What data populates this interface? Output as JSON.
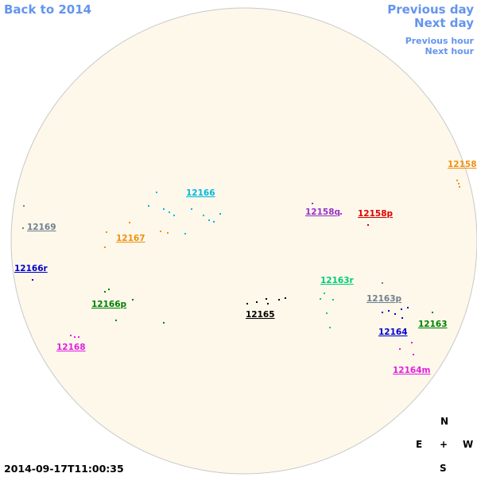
{
  "navigation": {
    "back": "Back to 2014",
    "previous_day": "Previous day",
    "next_day": "Next day",
    "previous_hour": "Previous hour",
    "next_hour": "Next hour"
  },
  "regions": [
    {
      "label": "12158",
      "color": "#f0900f"
    },
    {
      "label": "12166",
      "color": "#00b8e0"
    },
    {
      "label": "12158q",
      "color": "#9932cc"
    },
    {
      "label": "12158p",
      "color": "#e00000"
    },
    {
      "label": "12169",
      "color": "#708090"
    },
    {
      "label": "12167",
      "color": "#f0900f"
    },
    {
      "label": "12166r",
      "color": "#0000cd"
    },
    {
      "label": "12163r",
      "color": "#00cc77"
    },
    {
      "label": "12166p",
      "color": "#008000"
    },
    {
      "label": "12163p",
      "color": "#708090"
    },
    {
      "label": "12165",
      "color": "#000000"
    },
    {
      "label": "12164",
      "color": "#0000cd"
    },
    {
      "label": "12163",
      "color": "#008000"
    },
    {
      "label": "12168",
      "color": "#e020e0"
    },
    {
      "label": "12164m",
      "color": "#e020e0"
    }
  ],
  "compass": {
    "north": "N",
    "east": "E",
    "center": "+",
    "west": "W",
    "south": "S"
  },
  "timestamp": "2014-09-17T11:00:35"
}
